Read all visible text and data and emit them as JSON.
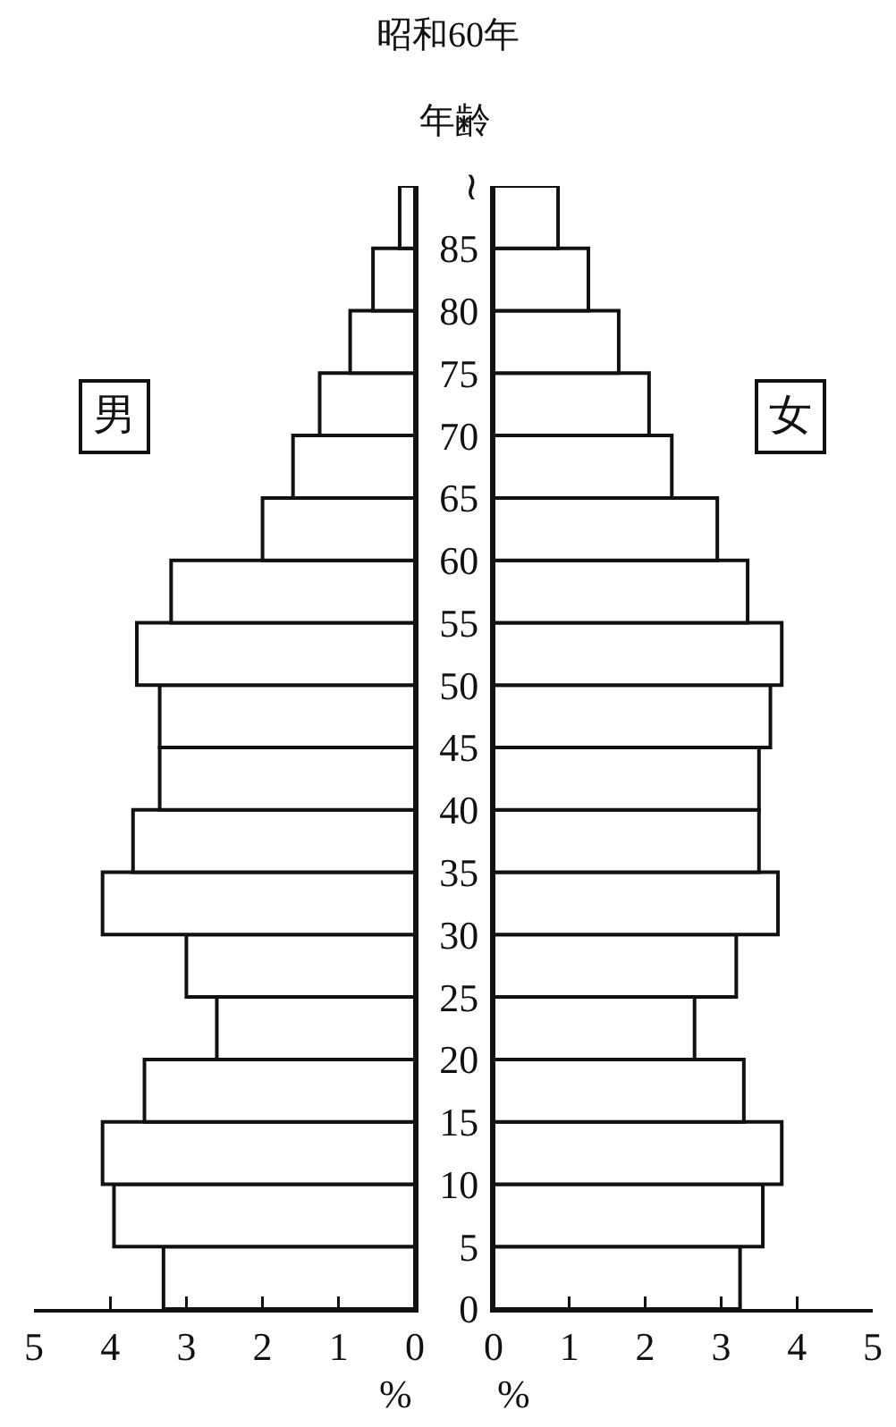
{
  "chart_data": [
    {
      "type": "bar",
      "orientation": "horizontal",
      "title": "昭和60年",
      "xlabel": "%",
      "annotations": [
        "男"
      ],
      "color": "#ffffff",
      "x": [
        2.5,
        7.5,
        12.5,
        17.5,
        22.5,
        27.5,
        32.5,
        37.5,
        42.5,
        47.5,
        52.5,
        57.5,
        62.5,
        67.5,
        72.5,
        77.5,
        82.5,
        87.5
      ],
      "values": [
        3.3,
        3.95,
        4.1,
        3.55,
        2.6,
        3.0,
        4.1,
        3.7,
        3.35,
        3.35,
        3.65,
        3.2,
        2.0,
        1.6,
        1.25,
        0.85,
        0.55,
        0.2
      ],
      "xlim": [
        5,
        0
      ],
      "xticks": [
        5,
        4,
        3,
        2,
        1,
        0
      ],
      "ylim": [
        0,
        90
      ],
      "tick_labels": "x"
    },
    {
      "type": "bar",
      "orientation": "horizontal",
      "ylabel": "年齢",
      "xlabel": "%",
      "annotations": [
        "女"
      ],
      "color": "#ffffff",
      "x": [
        2.5,
        7.5,
        12.5,
        17.5,
        22.5,
        27.5,
        32.5,
        37.5,
        42.5,
        47.5,
        52.5,
        57.5,
        62.5,
        67.5,
        72.5,
        77.5,
        82.5,
        87.5
      ],
      "values": [
        3.25,
        3.55,
        3.8,
        3.3,
        2.65,
        3.2,
        3.75,
        3.5,
        3.5,
        3.65,
        3.8,
        3.35,
        2.95,
        2.35,
        2.05,
        1.65,
        1.25,
        0.85
      ],
      "xlim": [
        0,
        5
      ],
      "xticks": [
        0,
        1,
        2,
        3,
        4,
        5
      ],
      "ylim": [
        0,
        90
      ],
      "yticks": [
        0,
        5,
        10,
        15,
        20,
        25,
        30,
        35,
        40,
        45,
        50,
        55,
        60,
        65,
        70,
        75,
        80,
        85,
        {
          "value": 90,
          "label": "≀"
        }
      ]
    }
  ]
}
